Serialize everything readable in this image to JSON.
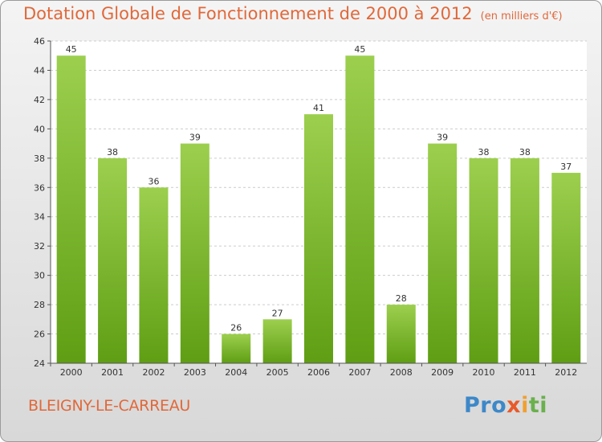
{
  "title": "Dotation Globale de Fonctionnement de 2000 à 2012",
  "unit_note": "(en milliers d'€)",
  "commune": "BLEIGNY-LE-CARREAU",
  "logo": {
    "p1": "Pro",
    "p2": "x",
    "p3": "i",
    "p4": "ti"
  },
  "colors": {
    "bar_top": "#9ccf4e",
    "bar_bottom": "#5f9e14",
    "accent": "#e0683a"
  },
  "chart_data": {
    "type": "bar",
    "title": "Dotation Globale de Fonctionnement de 2000 à 2012",
    "xlabel": "",
    "ylabel": "",
    "categories": [
      "2000",
      "2001",
      "2002",
      "2003",
      "2004",
      "2005",
      "2006",
      "2007",
      "2008",
      "2009",
      "2010",
      "2011",
      "2012"
    ],
    "values": [
      45,
      38,
      36,
      39,
      26,
      27,
      41,
      45,
      28,
      39,
      38,
      38,
      37
    ],
    "ylim": [
      24,
      46
    ],
    "yticks": [
      24,
      26,
      28,
      30,
      32,
      34,
      36,
      38,
      40,
      42,
      44,
      46
    ],
    "grid": true,
    "data_labels": true
  }
}
